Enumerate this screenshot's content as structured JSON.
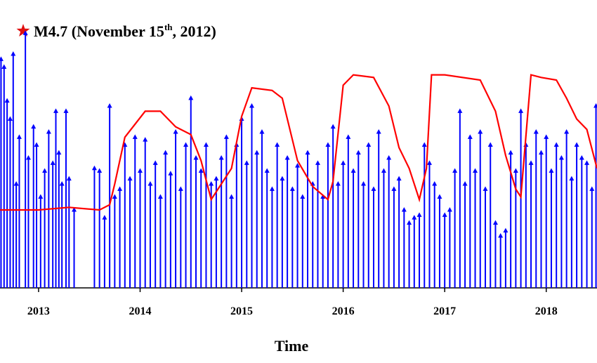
{
  "chart_data": {
    "type": "stem",
    "annotation": {
      "text": "M4.7 (November 15",
      "superscript": "th",
      "suffix": ", 2012)"
    },
    "xlabel": "Time",
    "xlim": [
      2012.62,
      2018.5
    ],
    "xticks": [
      2013,
      2014,
      2015,
      2016,
      2017,
      2018
    ],
    "ylim": [
      0,
      100
    ],
    "series": [
      {
        "type": "stem",
        "color": "#0000ff",
        "x": [
          2012.63,
          2012.66,
          2012.69,
          2012.72,
          2012.75,
          2012.78,
          2012.81,
          2012.87,
          2012.9,
          2012.95,
          2012.98,
          2013.02,
          2013.06,
          2013.1,
          2013.14,
          2013.17,
          2013.2,
          2013.23,
          2013.27,
          2013.3,
          2013.35,
          2013.55,
          2013.6,
          2013.65,
          2013.7,
          2013.75,
          2013.8,
          2013.85,
          2013.9,
          2013.95,
          2014.0,
          2014.05,
          2014.1,
          2014.15,
          2014.2,
          2014.25,
          2014.3,
          2014.35,
          2014.4,
          2014.45,
          2014.5,
          2014.55,
          2014.6,
          2014.65,
          2014.7,
          2014.75,
          2014.8,
          2014.85,
          2014.9,
          2014.95,
          2015.0,
          2015.05,
          2015.1,
          2015.15,
          2015.2,
          2015.25,
          2015.3,
          2015.35,
          2015.4,
          2015.45,
          2015.5,
          2015.55,
          2015.6,
          2015.65,
          2015.7,
          2015.75,
          2015.8,
          2015.85,
          2015.9,
          2015.95,
          2016.0,
          2016.05,
          2016.1,
          2016.15,
          2016.2,
          2016.25,
          2016.3,
          2016.35,
          2016.4,
          2016.45,
          2016.5,
          2016.55,
          2016.6,
          2016.65,
          2016.7,
          2016.75,
          2016.8,
          2016.85,
          2016.9,
          2016.95,
          2017.0,
          2017.05,
          2017.1,
          2017.15,
          2017.2,
          2017.25,
          2017.3,
          2017.35,
          2017.4,
          2017.45,
          2017.5,
          2017.55,
          2017.6,
          2017.65,
          2017.7,
          2017.75,
          2017.8,
          2017.85,
          2017.9,
          2017.95,
          2018.0,
          2018.05,
          2018.1,
          2018.15,
          2018.2,
          2018.25,
          2018.3,
          2018.35,
          2018.4,
          2018.45,
          2018.49
        ],
        "values": [
          88,
          85,
          72,
          65,
          90,
          40,
          58,
          98,
          50,
          62,
          55,
          35,
          45,
          60,
          48,
          68,
          52,
          40,
          68,
          42,
          30,
          46,
          45,
          27,
          70,
          35,
          38,
          55,
          42,
          58,
          45,
          57,
          40,
          48,
          35,
          52,
          44,
          60,
          38,
          55,
          73,
          50,
          45,
          55,
          40,
          42,
          50,
          58,
          35,
          55,
          65,
          48,
          70,
          52,
          60,
          45,
          38,
          55,
          42,
          50,
          38,
          47,
          35,
          52,
          40,
          48,
          35,
          55,
          62,
          40,
          48,
          58,
          45,
          52,
          40,
          55,
          38,
          60,
          45,
          50,
          38,
          42,
          30,
          25,
          27,
          28,
          55,
          48,
          40,
          35,
          28,
          30,
          45,
          68,
          40,
          58,
          45,
          60,
          38,
          55,
          25,
          20,
          22,
          52,
          45,
          68,
          55,
          48,
          60,
          52,
          58,
          45,
          55,
          50,
          60,
          42,
          55,
          50,
          48,
          38,
          70
        ]
      },
      {
        "type": "line",
        "color": "#ff0000",
        "x": [
          2012.62,
          2013.0,
          2013.3,
          2013.6,
          2013.7,
          2013.75,
          2013.85,
          2014.05,
          2014.2,
          2014.35,
          2014.5,
          2014.6,
          2014.7,
          2014.8,
          2014.9,
          2015.0,
          2015.1,
          2015.3,
          2015.4,
          2015.55,
          2015.7,
          2015.85,
          2015.9,
          2016.0,
          2016.1,
          2016.3,
          2016.45,
          2016.55,
          2016.65,
          2016.75,
          2016.82,
          2016.87,
          2017.0,
          2017.35,
          2017.5,
          2017.6,
          2017.7,
          2017.75,
          2017.85,
          2017.95,
          2018.1,
          2018.2,
          2018.3,
          2018.4,
          2018.5
        ],
        "values": [
          30,
          30,
          31,
          30,
          32,
          40,
          58,
          68,
          68,
          62,
          59,
          49,
          34,
          40,
          46,
          66,
          77,
          76,
          73,
          49,
          39,
          34,
          41,
          78,
          82,
          81,
          70,
          54,
          46,
          34,
          46,
          82,
          82,
          80,
          68,
          51,
          38,
          35,
          82,
          81,
          80,
          73,
          65,
          61,
          46
        ]
      }
    ]
  }
}
